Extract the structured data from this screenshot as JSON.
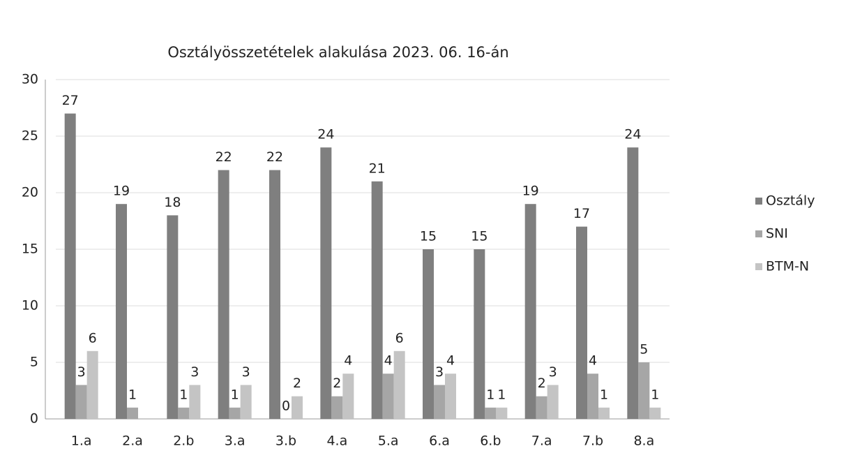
{
  "chart_data": {
    "type": "bar",
    "title": "Osztályösszetételek alakulása 2023. 06. 16-án",
    "categories": [
      "1.a",
      "2.a",
      "2.b",
      "3.a",
      "3.b",
      "4.a",
      "5.a",
      "6.a",
      "6.b",
      "7.a",
      "7.b",
      "8.a"
    ],
    "series": [
      {
        "name": "Osztály",
        "color": "#7f7f7f",
        "values": [
          27,
          19,
          18,
          22,
          22,
          24,
          21,
          15,
          15,
          19,
          17,
          24
        ]
      },
      {
        "name": "SNI",
        "color": "#a6a6a6",
        "values": [
          3,
          1,
          1,
          1,
          0,
          2,
          4,
          3,
          1,
          2,
          4,
          5
        ]
      },
      {
        "name": "BTM-N",
        "color": "#c4c4c4",
        "values": [
          6,
          null,
          3,
          3,
          2,
          4,
          6,
          4,
          1,
          3,
          1,
          1
        ]
      }
    ],
    "ylim": [
      0,
      30
    ],
    "yticks": [
      0,
      5,
      10,
      15,
      20,
      25,
      30
    ],
    "grid": true,
    "legend": "right"
  }
}
